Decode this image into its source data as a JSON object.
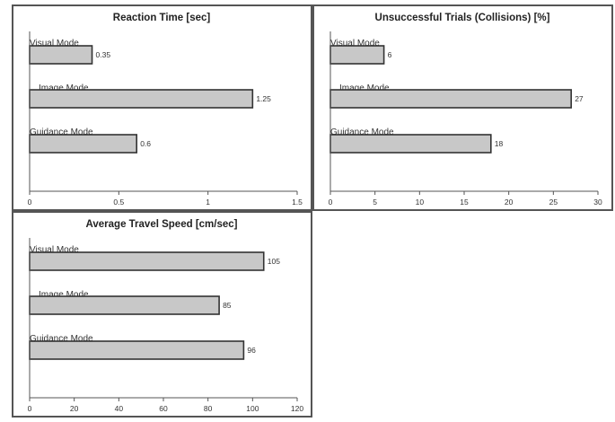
{
  "chart_data": [
    {
      "type": "bar",
      "orientation": "horizontal",
      "title": "Reaction Time [sec]",
      "categories": [
        "Visual Mode",
        "Image Mode",
        "Guidance Mode"
      ],
      "values": [
        0.35,
        1.25,
        0.6
      ],
      "value_labels": [
        "0.35",
        "1.25",
        "0.6"
      ],
      "xlim": [
        0,
        1.5
      ],
      "ticks": [
        0,
        0.5,
        1,
        1.5
      ],
      "tick_labels": [
        "0",
        "0.5",
        "1",
        "1.5"
      ],
      "grid": false,
      "bar_color": "#c8c8c8"
    },
    {
      "type": "bar",
      "orientation": "horizontal",
      "title": "Unsuccessful Trials (Collisions) [%]",
      "categories": [
        "Visual Mode",
        "Image Mode",
        "Guidance Mode"
      ],
      "values": [
        6,
        27,
        18
      ],
      "value_labels": [
        "6",
        "27",
        "18"
      ],
      "xlim": [
        0,
        30
      ],
      "ticks": [
        0,
        5,
        10,
        15,
        20,
        25,
        30
      ],
      "tick_labels": [
        "0",
        "5",
        "10",
        "15",
        "20",
        "25",
        "30"
      ],
      "grid": false,
      "bar_color": "#c8c8c8"
    },
    {
      "type": "bar",
      "orientation": "horizontal",
      "title": "Average Travel Speed [cm/sec]",
      "categories": [
        "Visual Mode",
        "Image Mode",
        "Guidance Mode"
      ],
      "values": [
        105,
        85,
        96
      ],
      "value_labels": [
        "105",
        "85",
        "96"
      ],
      "xlim": [
        0,
        120
      ],
      "ticks": [
        0,
        20,
        40,
        60,
        80,
        100,
        120
      ],
      "tick_labels": [
        "0",
        "20",
        "40",
        "60",
        "80",
        "100",
        "120"
      ],
      "grid": false,
      "bar_color": "#c8c8c8"
    }
  ]
}
